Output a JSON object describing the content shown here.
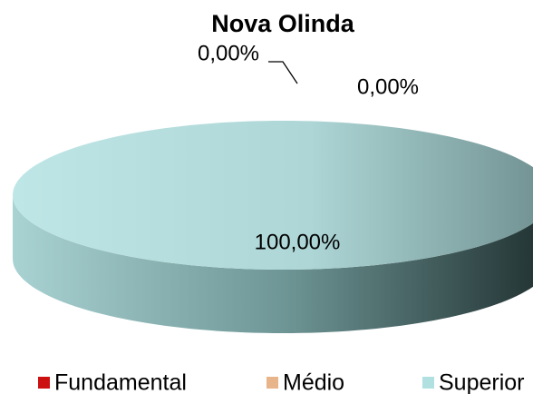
{
  "chart_data": {
    "type": "pie",
    "title": "Nova Olinda",
    "categories": [
      "Fundamental",
      "Médio",
      "Superior"
    ],
    "values": [
      0,
      0,
      100
    ],
    "value_labels": [
      "0,00%",
      "0,00%",
      "100,00%"
    ],
    "colors": [
      "#cc1111",
      "#e8b48a",
      "#b0e0e0"
    ],
    "legend": "bottom"
  }
}
